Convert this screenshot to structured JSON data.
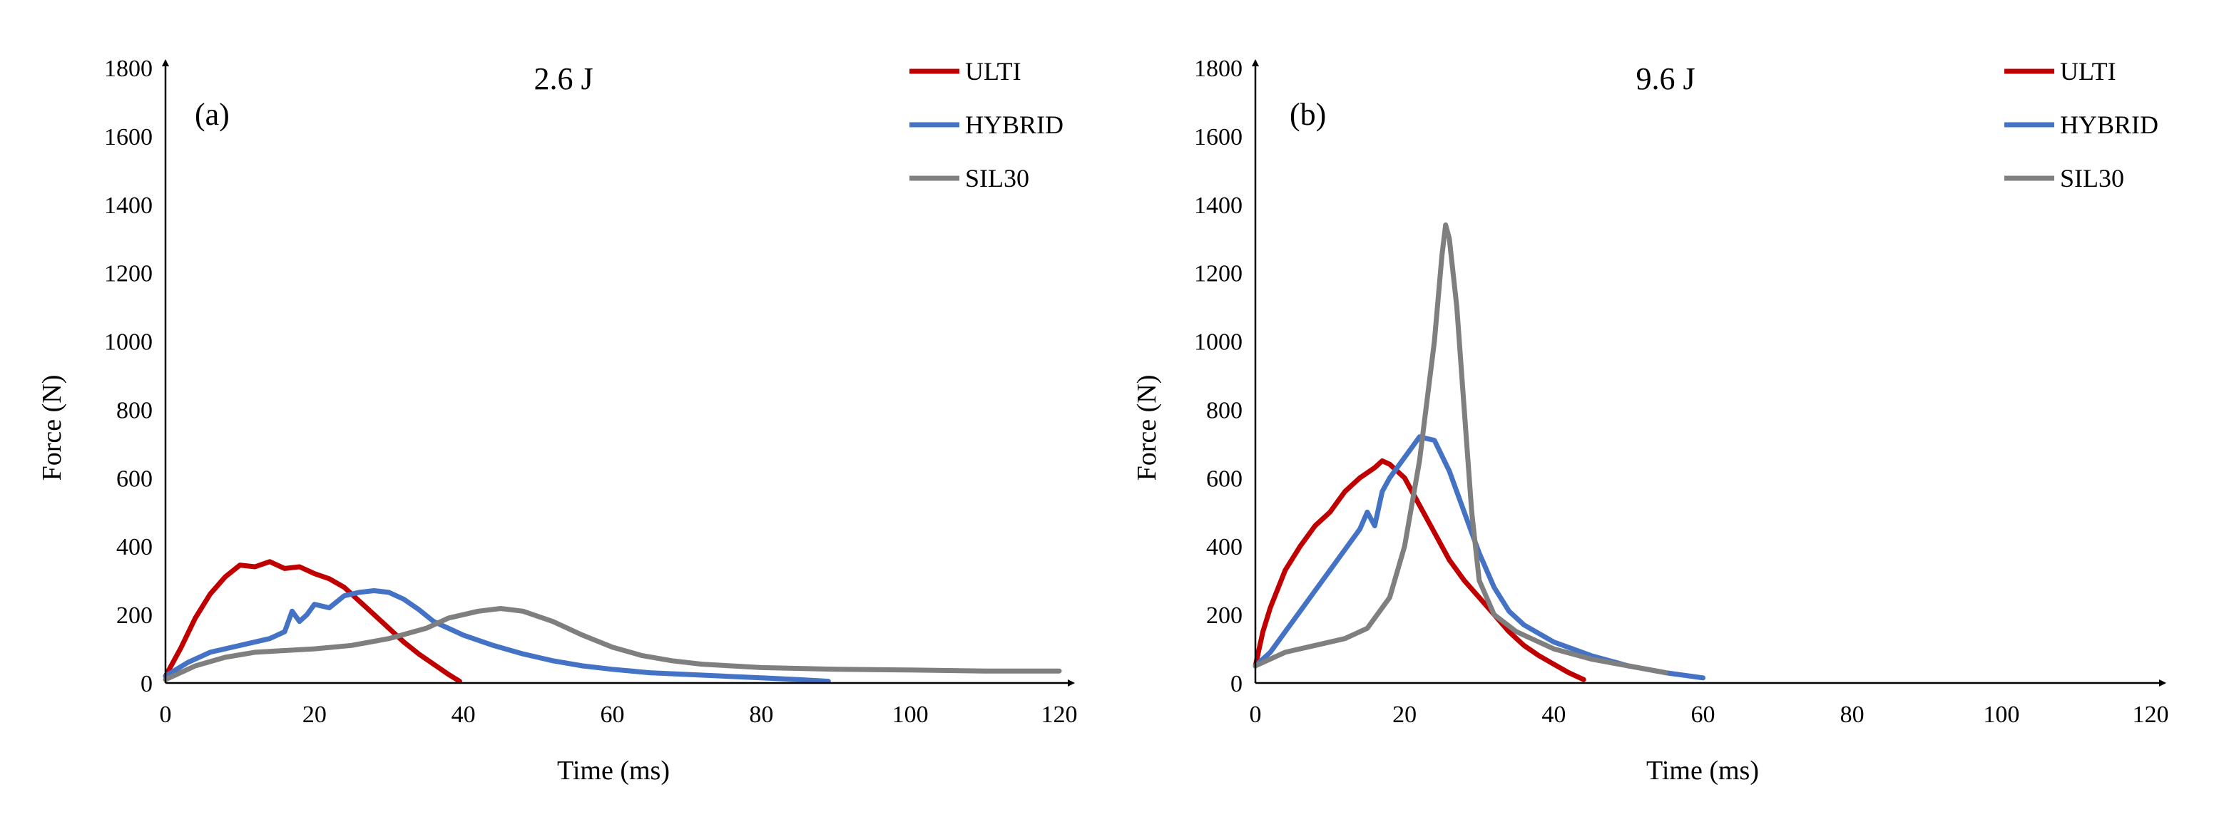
{
  "chart_data": [
    {
      "type": "line",
      "panel_label": "(a)",
      "title": "2.6 J",
      "xlabel": "Time (ms)",
      "ylabel": "Force (N)",
      "xlim": [
        0,
        120
      ],
      "ylim": [
        0,
        1800
      ],
      "x_ticks": [
        "0",
        "20",
        "40",
        "60",
        "80",
        "100",
        "120"
      ],
      "y_ticks": [
        "0",
        "200",
        "400",
        "600",
        "800",
        "1000",
        "1200",
        "1400",
        "1600",
        "1800"
      ],
      "grid": false,
      "legend_position": "top-right",
      "series": [
        {
          "name": "ULTI",
          "color": "#C00000",
          "points": [
            [
              0,
              20
            ],
            [
              2,
              100
            ],
            [
              4,
              190
            ],
            [
              6,
              260
            ],
            [
              8,
              310
            ],
            [
              10,
              345
            ],
            [
              12,
              340
            ],
            [
              14,
              355
            ],
            [
              16,
              335
            ],
            [
              18,
              340
            ],
            [
              20,
              320
            ],
            [
              22,
              305
            ],
            [
              24,
              280
            ],
            [
              26,
              240
            ],
            [
              28,
              200
            ],
            [
              30,
              160
            ],
            [
              32,
              120
            ],
            [
              34,
              85
            ],
            [
              36,
              55
            ],
            [
              38,
              25
            ],
            [
              39.5,
              5
            ]
          ]
        },
        {
          "name": "HYBRID",
          "color": "#4472C4",
          "points": [
            [
              0,
              20
            ],
            [
              3,
              60
            ],
            [
              6,
              90
            ],
            [
              10,
              110
            ],
            [
              14,
              130
            ],
            [
              16,
              150
            ],
            [
              17,
              210
            ],
            [
              18,
              180
            ],
            [
              19,
              200
            ],
            [
              20,
              230
            ],
            [
              22,
              220
            ],
            [
              24,
              255
            ],
            [
              26,
              265
            ],
            [
              28,
              270
            ],
            [
              30,
              265
            ],
            [
              32,
              245
            ],
            [
              34,
              215
            ],
            [
              36,
              180
            ],
            [
              40,
              140
            ],
            [
              44,
              110
            ],
            [
              48,
              85
            ],
            [
              52,
              65
            ],
            [
              56,
              50
            ],
            [
              60,
              40
            ],
            [
              65,
              30
            ],
            [
              70,
              25
            ],
            [
              75,
              20
            ],
            [
              80,
              15
            ],
            [
              85,
              10
            ],
            [
              89,
              5
            ]
          ]
        },
        {
          "name": "SIL30",
          "color": "#7F7F7F",
          "points": [
            [
              0,
              10
            ],
            [
              4,
              50
            ],
            [
              8,
              75
            ],
            [
              12,
              90
            ],
            [
              16,
              95
            ],
            [
              20,
              100
            ],
            [
              25,
              110
            ],
            [
              30,
              130
            ],
            [
              35,
              160
            ],
            [
              38,
              190
            ],
            [
              42,
              210
            ],
            [
              45,
              218
            ],
            [
              48,
              210
            ],
            [
              52,
              180
            ],
            [
              56,
              140
            ],
            [
              60,
              105
            ],
            [
              64,
              80
            ],
            [
              68,
              65
            ],
            [
              72,
              55
            ],
            [
              76,
              50
            ],
            [
              80,
              45
            ],
            [
              90,
              40
            ],
            [
              100,
              38
            ],
            [
              110,
              35
            ],
            [
              120,
              35
            ]
          ]
        }
      ]
    },
    {
      "type": "line",
      "panel_label": "(b)",
      "title": "9.6 J",
      "xlabel": "Time (ms)",
      "ylabel": "Force (N)",
      "xlim": [
        0,
        120
      ],
      "ylim": [
        0,
        1800
      ],
      "x_ticks": [
        "0",
        "20",
        "40",
        "60",
        "80",
        "100",
        "120"
      ],
      "y_ticks": [
        "0",
        "200",
        "400",
        "600",
        "800",
        "1000",
        "1200",
        "1400",
        "1600",
        "1800"
      ],
      "grid": false,
      "legend_position": "top-right",
      "series": [
        {
          "name": "ULTI",
          "color": "#C00000",
          "points": [
            [
              0,
              50
            ],
            [
              1,
              150
            ],
            [
              2,
              220
            ],
            [
              4,
              330
            ],
            [
              6,
              400
            ],
            [
              8,
              460
            ],
            [
              10,
              500
            ],
            [
              12,
              560
            ],
            [
              14,
              600
            ],
            [
              16,
              630
            ],
            [
              17,
              650
            ],
            [
              18,
              640
            ],
            [
              20,
              600
            ],
            [
              22,
              520
            ],
            [
              24,
              440
            ],
            [
              26,
              360
            ],
            [
              28,
              300
            ],
            [
              30,
              250
            ],
            [
              32,
              200
            ],
            [
              34,
              150
            ],
            [
              36,
              110
            ],
            [
              38,
              80
            ],
            [
              40,
              55
            ],
            [
              42,
              30
            ],
            [
              44,
              10
            ]
          ]
        },
        {
          "name": "HYBRID",
          "color": "#4472C4",
          "points": [
            [
              0,
              50
            ],
            [
              2,
              90
            ],
            [
              4,
              150
            ],
            [
              6,
              210
            ],
            [
              8,
              270
            ],
            [
              10,
              330
            ],
            [
              12,
              390
            ],
            [
              14,
              450
            ],
            [
              15,
              500
            ],
            [
              16,
              460
            ],
            [
              17,
              560
            ],
            [
              18,
              600
            ],
            [
              20,
              660
            ],
            [
              22,
              720
            ],
            [
              24,
              710
            ],
            [
              26,
              620
            ],
            [
              28,
              500
            ],
            [
              30,
              380
            ],
            [
              32,
              280
            ],
            [
              34,
              210
            ],
            [
              36,
              170
            ],
            [
              40,
              120
            ],
            [
              45,
              80
            ],
            [
              50,
              50
            ],
            [
              55,
              30
            ],
            [
              60,
              15
            ]
          ]
        },
        {
          "name": "SIL30",
          "color": "#7F7F7F",
          "points": [
            [
              0,
              50
            ],
            [
              4,
              90
            ],
            [
              8,
              110
            ],
            [
              12,
              130
            ],
            [
              15,
              160
            ],
            [
              18,
              250
            ],
            [
              20,
              400
            ],
            [
              22,
              650
            ],
            [
              24,
              1000
            ],
            [
              25,
              1250
            ],
            [
              25.5,
              1340
            ],
            [
              26,
              1300
            ],
            [
              27,
              1100
            ],
            [
              28,
              800
            ],
            [
              29,
              500
            ],
            [
              30,
              300
            ],
            [
              32,
              200
            ],
            [
              35,
              150
            ],
            [
              40,
              100
            ],
            [
              45,
              70
            ],
            [
              50,
              50
            ],
            [
              55,
              30
            ]
          ]
        }
      ]
    }
  ]
}
